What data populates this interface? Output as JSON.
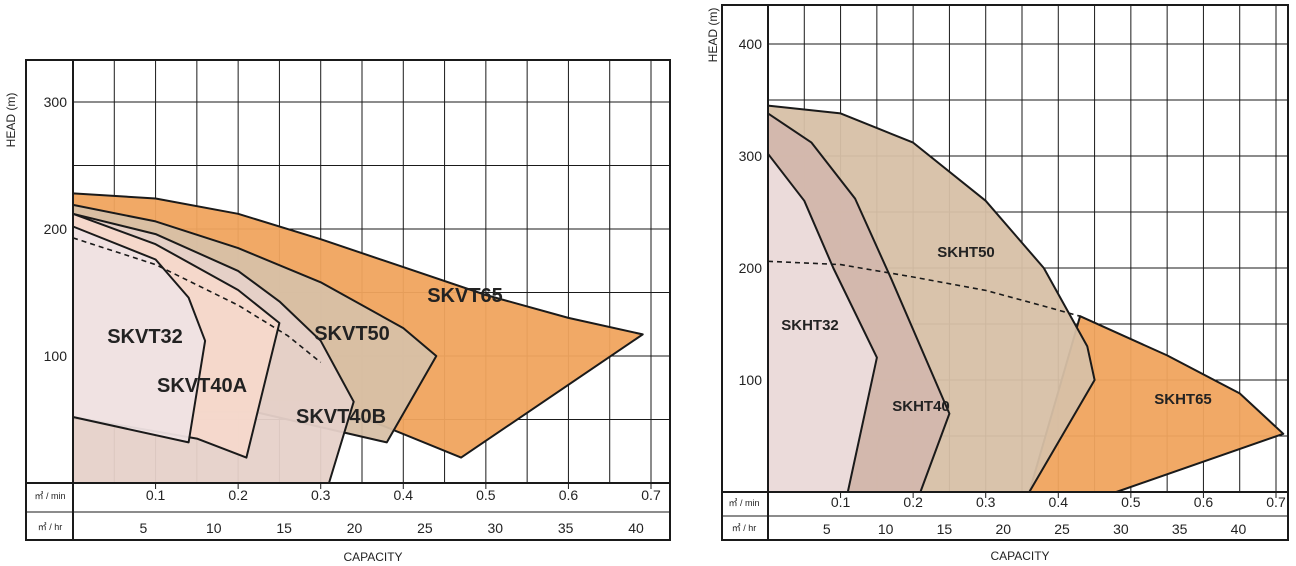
{
  "chart_data": [
    {
      "type": "area",
      "ylabel": "HEAD (m)",
      "xlabel": "CAPACITY",
      "unit_min": "㎥ / min",
      "unit_hr": "㎥ / hr",
      "ylim": [
        0,
        340
      ],
      "xlim_m3min": [
        0,
        0.75
      ],
      "y_ticks": [
        "100",
        "200",
        "300"
      ],
      "x_ticks_min": [
        "0.1",
        "0.2",
        "0.3",
        "0.4",
        "0.5",
        "0.6",
        "0.7"
      ],
      "x_ticks_hr": [
        "5",
        "10",
        "15",
        "20",
        "25",
        "30",
        "35",
        "40"
      ],
      "grid": true,
      "series": [
        {
          "name": "SKVT65",
          "color": "#f0a45e",
          "points": [
            [
              0,
              228
            ],
            [
              0.1,
              224
            ],
            [
              0.2,
              212
            ],
            [
              0.3,
              192
            ],
            [
              0.4,
              170
            ],
            [
              0.5,
              148
            ],
            [
              0.6,
              130
            ],
            [
              0.69,
              117
            ],
            [
              0.47,
              20
            ],
            [
              0.3,
              65
            ],
            [
              0,
              65
            ]
          ]
        },
        {
          "name": "SKVT50",
          "color": "#d7c0a6",
          "points": [
            [
              0,
              219
            ],
            [
              0.1,
              206
            ],
            [
              0.2,
              185
            ],
            [
              0.3,
              158
            ],
            [
              0.4,
              122
            ],
            [
              0.44,
              100
            ],
            [
              0.38,
              32
            ],
            [
              0.22,
              56
            ],
            [
              0,
              56
            ]
          ]
        },
        {
          "name": "SKVT40B",
          "color": "#e6d1c9",
          "points": [
            [
              0,
              212
            ],
            [
              0.1,
              196
            ],
            [
              0.2,
              167
            ],
            [
              0.25,
              143
            ],
            [
              0.3,
              112
            ],
            [
              0.34,
              64
            ],
            [
              0.31,
              0
            ],
            [
              0,
              0
            ]
          ]
        },
        {
          "name": "SKVT40A",
          "color": "#f5d8cb",
          "points": [
            [
              0,
              212
            ],
            [
              0.1,
              188
            ],
            [
              0.2,
              152
            ],
            [
              0.25,
              126
            ],
            [
              0.21,
              20
            ],
            [
              0.15,
              35
            ],
            [
              0,
              52
            ]
          ]
        },
        {
          "name": "SKVT32",
          "color": "#efe3e3",
          "points": [
            [
              0,
              202
            ],
            [
              0.1,
              176
            ],
            [
              0.14,
              146
            ],
            [
              0.16,
              112
            ],
            [
              0.14,
              32
            ],
            [
              0,
              52
            ]
          ]
        }
      ],
      "dashed_curve": [
        [
          0,
          193
        ],
        [
          0.1,
          172
        ],
        [
          0.2,
          140
        ],
        [
          0.26,
          116
        ],
        [
          0.3,
          95
        ]
      ]
    },
    {
      "type": "area",
      "ylabel": "HEAD (m)",
      "xlabel": "CAPACITY",
      "unit_min": "㎥ / min",
      "unit_hr": "㎥ / hr",
      "ylim": [
        0,
        430
      ],
      "xlim_m3min": [
        0,
        0.72
      ],
      "y_ticks": [
        "100",
        "200",
        "300",
        "400"
      ],
      "x_ticks_min": [
        "0.1",
        "0.2",
        "0.3",
        "0.4",
        "0.5",
        "0.6",
        "0.7"
      ],
      "x_ticks_hr": [
        "5",
        "10",
        "15",
        "20",
        "25",
        "30",
        "35",
        "40"
      ],
      "grid": true,
      "series": [
        {
          "name": "SKHT65",
          "color": "#f0a45e",
          "points": [
            [
              0.43,
              157
            ],
            [
              0.55,
              122
            ],
            [
              0.65,
              88
            ],
            [
              0.71,
              52
            ],
            [
              0.48,
              0
            ],
            [
              0.36,
              0
            ]
          ]
        },
        {
          "name": "SKHT50",
          "color": "#d7c0a6",
          "points": [
            [
              0,
              345
            ],
            [
              0.1,
              338
            ],
            [
              0.2,
              312
            ],
            [
              0.3,
              260
            ],
            [
              0.38,
              200
            ],
            [
              0.44,
              130
            ],
            [
              0.45,
              100
            ],
            [
              0.36,
              0
            ],
            [
              0,
              0
            ]
          ]
        },
        {
          "name": "SKHT40",
          "color": "#d3b7ad",
          "points": [
            [
              0,
              338
            ],
            [
              0.06,
              312
            ],
            [
              0.12,
              262
            ],
            [
              0.17,
              190
            ],
            [
              0.25,
              70
            ],
            [
              0.21,
              0
            ],
            [
              0,
              0
            ]
          ]
        },
        {
          "name": "SKHT32",
          "color": "#ecdcdc",
          "points": [
            [
              0,
              302
            ],
            [
              0.05,
              260
            ],
            [
              0.09,
              200
            ],
            [
              0.15,
              120
            ],
            [
              0.11,
              0
            ],
            [
              0,
              0
            ]
          ]
        }
      ],
      "dashed_curve": [
        [
          0,
          206
        ],
        [
          0.1,
          203
        ],
        [
          0.2,
          192
        ],
        [
          0.3,
          180
        ],
        [
          0.38,
          166
        ],
        [
          0.43,
          157
        ]
      ]
    }
  ]
}
